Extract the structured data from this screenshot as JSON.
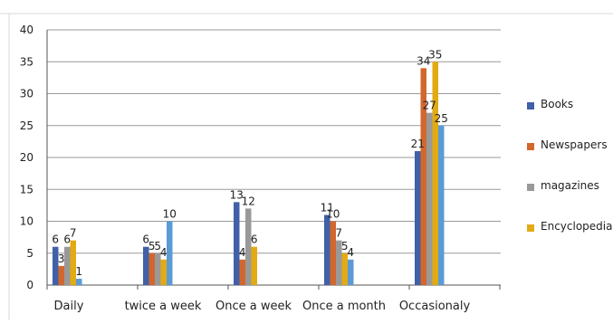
{
  "chart_data": {
    "type": "bar",
    "categories": [
      "Daily",
      "twice a week",
      "Once a week",
      "Once a month",
      "Occasionaly"
    ],
    "series": [
      {
        "name": "Books",
        "values": [
          6,
          6,
          13,
          11,
          21
        ]
      },
      {
        "name": "Newspapers",
        "values": [
          3,
          5,
          4,
          10,
          34
        ]
      },
      {
        "name": "magazines",
        "values": [
          6,
          5,
          12,
          7,
          27
        ]
      },
      {
        "name": "Encyclopedia",
        "values": [
          7,
          4,
          6,
          5,
          35
        ]
      },
      {
        "name": "",
        "values": [
          1,
          10,
          0,
          4,
          25
        ]
      }
    ],
    "ylim": [
      0,
      40
    ],
    "yticks": [
      0,
      5,
      10,
      15,
      20,
      25,
      30,
      35,
      40
    ],
    "grid": true,
    "legend": "right",
    "legend_entries": [
      "Books",
      "Newspapers",
      "magazines",
      "Encyclopedia"
    ],
    "title": "",
    "xlabel": "",
    "ylabel": ""
  },
  "colors": {
    "series": [
      "#4060A8",
      "#D2672E",
      "#999999",
      "#E2AA13",
      "#5B9BD5"
    ],
    "grid": "#9A9A9A",
    "axis": "#555555"
  }
}
